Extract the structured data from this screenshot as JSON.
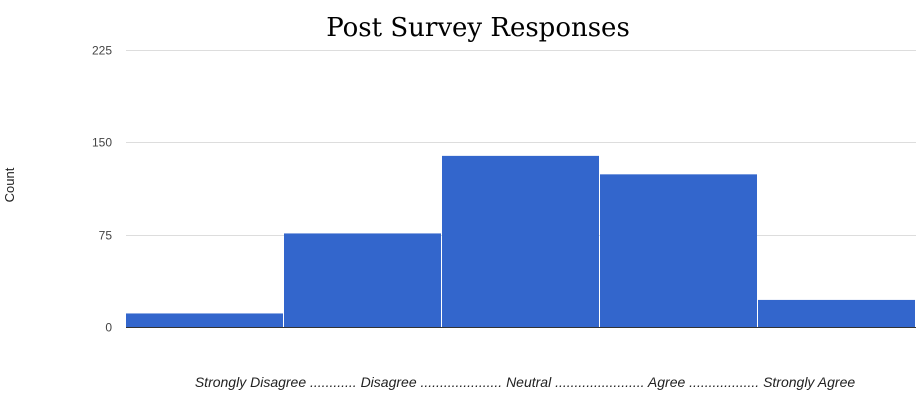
{
  "chart_data": {
    "type": "bar",
    "title": "Post Survey Responses",
    "xlabel": "Strongly Disagree ............ Disagree ..................... Neutral ....................... Agree .................. Strongly Agree",
    "ylabel": "Count",
    "categories": [
      "Strongly Disagree",
      "Disagree",
      "Neutral",
      "Agree",
      "Strongly Agree"
    ],
    "values": [
      11,
      76,
      139,
      124,
      22
    ],
    "ylim": [
      0,
      225
    ],
    "yticks": [
      0,
      75,
      150,
      225
    ],
    "grid": true,
    "legend": "none",
    "bar_color": "#3366cc",
    "grid_color": "#dddddd"
  }
}
